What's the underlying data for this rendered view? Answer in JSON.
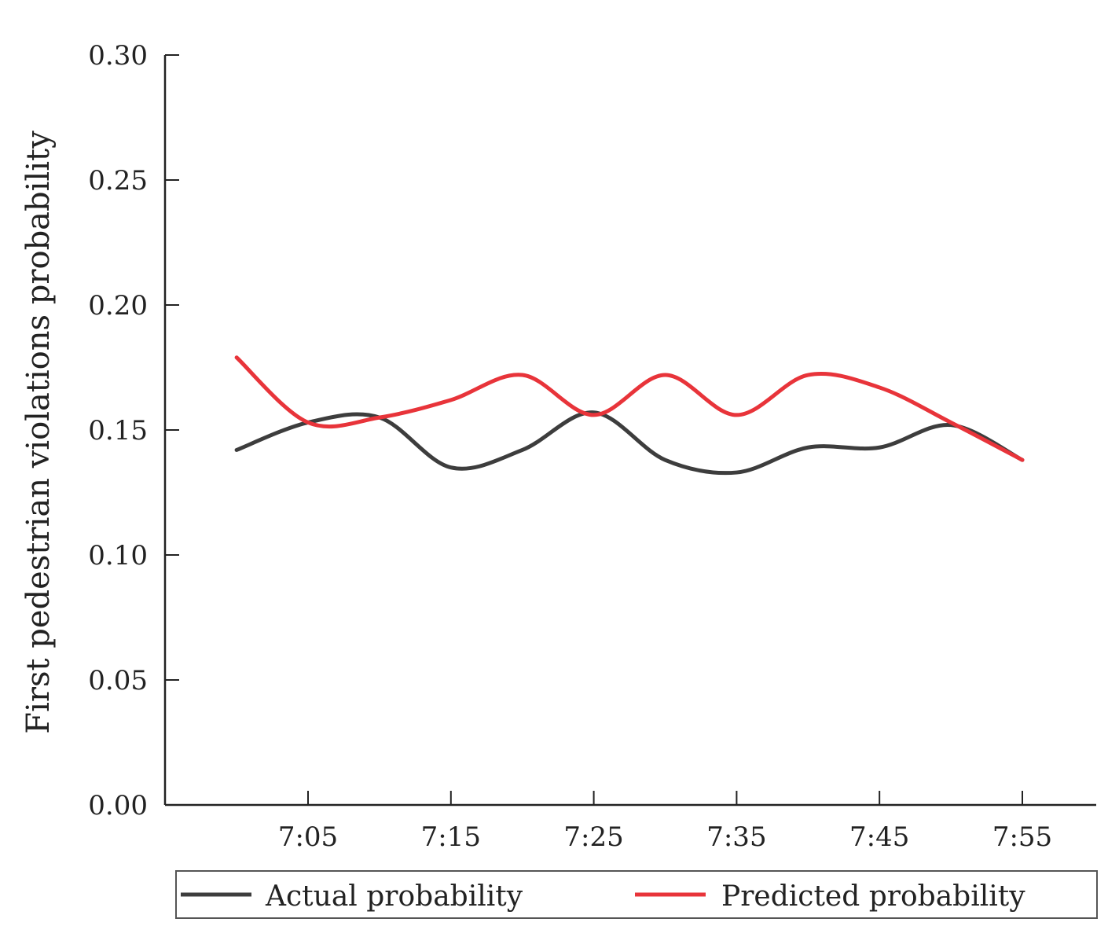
{
  "chart_data": {
    "type": "line",
    "title": "",
    "xlabel": "",
    "ylabel": "First pedestrian violations probability",
    "x_ticks": [
      "7:05",
      "7:15",
      "7:25",
      "7:35",
      "7:45",
      "7:55"
    ],
    "y_ticks": [
      "0.00",
      "0.05",
      "0.10",
      "0.15",
      "0.20",
      "0.25",
      "0.30"
    ],
    "ylim": [
      0,
      0.3
    ],
    "xlim_minutes": [
      0,
      65
    ],
    "grid": false,
    "legend_position": "bottom",
    "series": [
      {
        "name": "Actual probability",
        "color": "#3d3d3d",
        "x_minutes": [
          0,
          5,
          10,
          15,
          20,
          25,
          30,
          35,
          40,
          45,
          50,
          55
        ],
        "values": [
          0.142,
          0.153,
          0.155,
          0.135,
          0.142,
          0.157,
          0.138,
          0.133,
          0.143,
          0.143,
          0.152,
          0.138
        ]
      },
      {
        "name": "Predicted probability",
        "color": "#e8343a",
        "x_minutes": [
          0,
          5,
          10,
          15,
          20,
          25,
          30,
          35,
          40,
          45,
          50,
          55
        ],
        "values": [
          0.179,
          0.153,
          0.155,
          0.162,
          0.172,
          0.156,
          0.172,
          0.156,
          0.172,
          0.167,
          0.153,
          0.138
        ]
      }
    ]
  }
}
